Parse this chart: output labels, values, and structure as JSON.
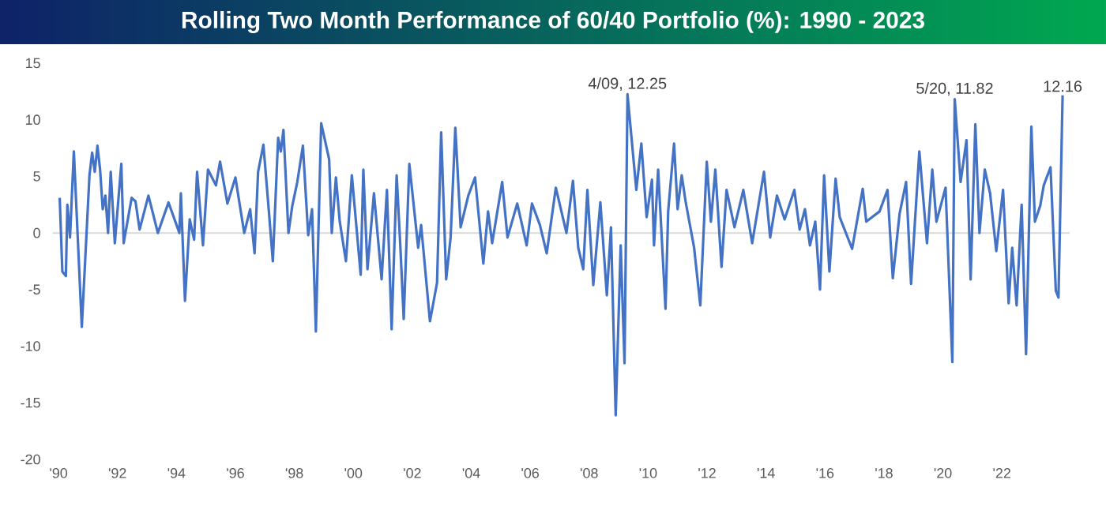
{
  "chart_data": {
    "type": "line",
    "title": "Rolling Two Month Performance of 60/40 Portfolio (%): 1990 - 2023",
    "xlim": [
      1989.8,
      2024.3
    ],
    "xticks": [
      {
        "value": 1990,
        "label": "'90"
      },
      {
        "value": 1992,
        "label": "'92"
      },
      {
        "value": 1994,
        "label": "'94"
      },
      {
        "value": 1996,
        "label": "'96"
      },
      {
        "value": 1998,
        "label": "'98"
      },
      {
        "value": 2000,
        "label": "'00"
      },
      {
        "value": 2002,
        "label": "'02"
      },
      {
        "value": 2004,
        "label": "'04"
      },
      {
        "value": 2006,
        "label": "'06"
      },
      {
        "value": 2008,
        "label": "'08"
      },
      {
        "value": 2010,
        "label": "'10"
      },
      {
        "value": 2012,
        "label": "'12"
      },
      {
        "value": 2014,
        "label": "'14"
      },
      {
        "value": 2016,
        "label": "'16"
      },
      {
        "value": 2018,
        "label": "'18"
      },
      {
        "value": 2020,
        "label": "'20"
      },
      {
        "value": 2022,
        "label": "'22"
      }
    ],
    "ylim": [
      -20,
      15
    ],
    "yticks": [
      -20,
      -15,
      -10,
      -5,
      0,
      5,
      10,
      15
    ],
    "marker": "none",
    "line_style": "solid",
    "ref_lines": [
      {
        "axis": "y",
        "value": 0,
        "color": "#d9d9d9"
      }
    ],
    "annotations": [
      {
        "text": "4/09, 12.25",
        "x": 2009.3,
        "y": 12.25
      },
      {
        "text": "5/20, 11.82",
        "x": 2020.4,
        "y": 11.82
      },
      {
        "text": "12.16",
        "x": 2024.06,
        "y": 12.16
      }
    ],
    "series": [
      {
        "color": "#4472c4",
        "x": [
          1990.04,
          1990.13,
          1990.25,
          1990.3,
          1990.39,
          1990.52,
          1990.79,
          1991.05,
          1991.14,
          1991.23,
          1991.32,
          1991.41,
          1991.5,
          1991.59,
          1991.68,
          1991.77,
          1991.91,
          1992.13,
          1992.21,
          1992.48,
          1992.61,
          1992.75,
          1993.05,
          1993.37,
          1993.73,
          1994.1,
          1994.15,
          1994.29,
          1994.45,
          1994.6,
          1994.7,
          1994.9,
          1995.07,
          1995.34,
          1995.48,
          1995.73,
          1996.0,
          1996.3,
          1996.5,
          1996.65,
          1996.77,
          1996.95,
          1997.13,
          1997.27,
          1997.45,
          1997.54,
          1997.63,
          1997.8,
          1997.93,
          1998.1,
          1998.29,
          1998.47,
          1998.6,
          1998.73,
          1998.91,
          1999.18,
          1999.27,
          1999.41,
          1999.54,
          1999.75,
          1999.95,
          2000.25,
          2000.34,
          2000.48,
          2000.7,
          2000.96,
          2001.14,
          2001.3,
          2001.47,
          2001.59,
          2001.71,
          2001.9,
          2002.2,
          2002.3,
          2002.6,
          2002.84,
          2002.98,
          2003.15,
          2003.3,
          2003.46,
          2003.64,
          2003.9,
          2004.13,
          2004.41,
          2004.57,
          2004.71,
          2005.05,
          2005.23,
          2005.56,
          2005.88,
          2006.06,
          2006.33,
          2006.56,
          2006.87,
          2007.23,
          2007.45,
          2007.63,
          2007.8,
          2007.94,
          2008.14,
          2008.38,
          2008.6,
          2008.74,
          2008.9,
          2009.07,
          2009.2,
          2009.3,
          2009.6,
          2009.77,
          2009.95,
          2010.13,
          2010.2,
          2010.34,
          2010.59,
          2010.68,
          2010.88,
          2011.0,
          2011.14,
          2011.27,
          2011.56,
          2011.77,
          2011.99,
          2012.13,
          2012.28,
          2012.49,
          2012.66,
          2012.93,
          2013.23,
          2013.53,
          2013.93,
          2014.14,
          2014.37,
          2014.63,
          2014.96,
          2015.14,
          2015.32,
          2015.49,
          2015.67,
          2015.83,
          2015.97,
          2016.15,
          2016.36,
          2016.5,
          2016.92,
          2017.28,
          2017.4,
          2017.85,
          2018.12,
          2018.3,
          2018.53,
          2018.75,
          2018.92,
          2019.2,
          2019.46,
          2019.64,
          2019.78,
          2020.09,
          2020.32,
          2020.4,
          2020.6,
          2020.8,
          2020.94,
          2021.1,
          2021.24,
          2021.42,
          2021.6,
          2021.81,
          2022.04,
          2022.23,
          2022.35,
          2022.5,
          2022.67,
          2022.82,
          2023.0,
          2023.12,
          2023.3,
          2023.42,
          2023.65,
          2023.83,
          2023.92,
          2024.06
        ],
        "values": [
          3.1,
          -3.4,
          -3.8,
          2.5,
          -0.4,
          7.2,
          -8.3,
          5.1,
          7.1,
          5.4,
          7.7,
          5.6,
          2.1,
          3.3,
          0.0,
          5.4,
          -0.9,
          6.1,
          -0.9,
          3.1,
          2.8,
          0.3,
          3.3,
          0.0,
          2.7,
          0.0,
          3.5,
          -6.0,
          1.2,
          -0.6,
          5.4,
          -1.1,
          5.6,
          4.2,
          6.3,
          2.6,
          4.9,
          0.0,
          2.1,
          -1.8,
          5.4,
          7.8,
          2.1,
          -2.5,
          8.4,
          7.2,
          9.1,
          0.0,
          2.4,
          4.5,
          7.7,
          -0.2,
          2.1,
          -8.7,
          9.7,
          6.5,
          0.0,
          4.9,
          1.0,
          -2.5,
          5.1,
          -3.7,
          5.6,
          -3.2,
          3.5,
          -4.1,
          3.8,
          -8.5,
          5.1,
          -0.9,
          -7.6,
          6.1,
          -1.3,
          0.7,
          -7.8,
          -4.4,
          8.9,
          -4.1,
          -0.4,
          9.3,
          0.5,
          3.3,
          4.9,
          -2.7,
          1.9,
          -0.9,
          4.5,
          -0.4,
          2.6,
          -1.1,
          2.6,
          0.7,
          -1.8,
          4.0,
          0.0,
          4.6,
          -1.3,
          -3.2,
          3.8,
          -4.6,
          2.7,
          -5.5,
          0.5,
          -16.1,
          -1.1,
          -11.5,
          12.25,
          3.8,
          7.9,
          1.4,
          4.7,
          -1.1,
          5.6,
          -6.7,
          1.9,
          7.9,
          2.1,
          5.1,
          2.8,
          -1.3,
          -6.4,
          6.3,
          1.0,
          5.6,
          -3.0,
          3.8,
          0.5,
          3.8,
          -0.9,
          5.4,
          -0.4,
          3.3,
          1.2,
          3.8,
          0.3,
          2.1,
          -1.1,
          1.0,
          -5.0,
          5.1,
          -3.4,
          4.8,
          1.4,
          -1.4,
          3.9,
          1.0,
          1.9,
          3.8,
          -4.0,
          1.7,
          4.5,
          -4.5,
          7.2,
          -0.9,
          5.6,
          1.0,
          4.0,
          -11.4,
          11.82,
          4.5,
          8.2,
          -4.1,
          9.6,
          0.0,
          5.6,
          3.5,
          -1.6,
          3.8,
          -6.2,
          -1.3,
          -6.4,
          2.5,
          -10.7,
          9.4,
          1.0,
          2.4,
          4.2,
          5.8,
          -5.1,
          -5.7,
          12.16
        ]
      }
    ]
  }
}
